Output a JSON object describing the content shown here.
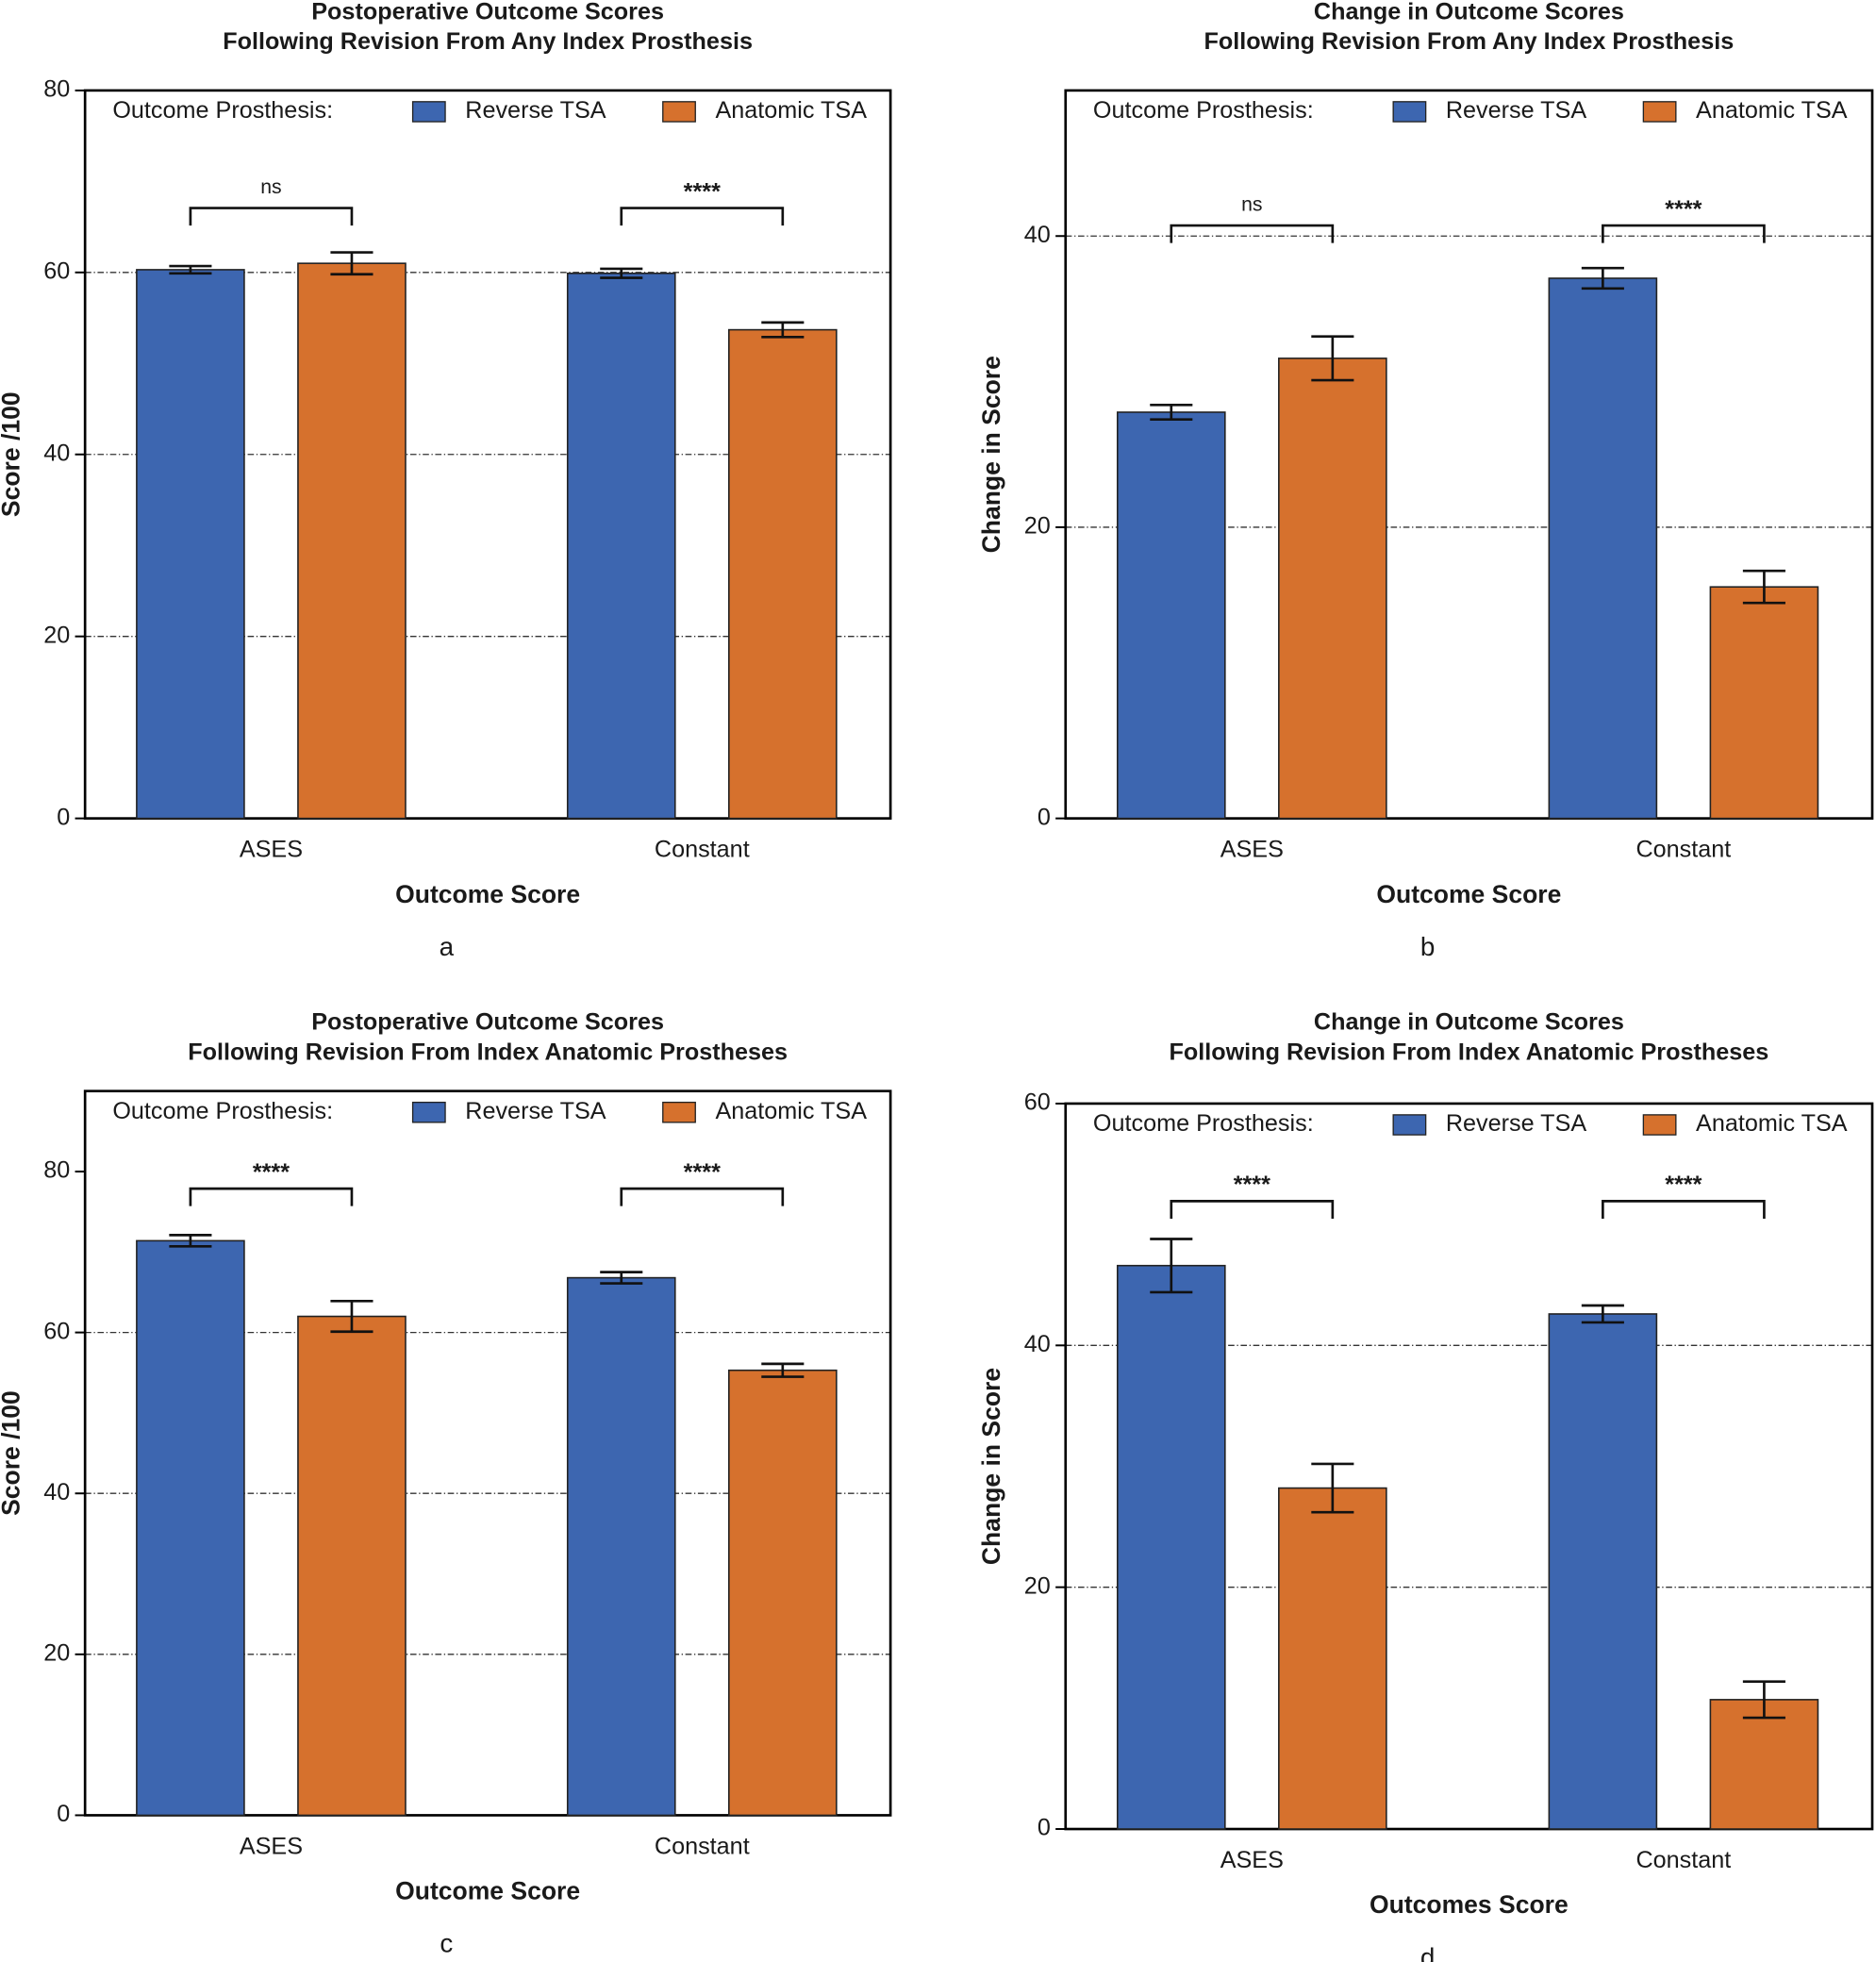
{
  "chart_data": [
    {
      "type": "bar",
      "title": [
        "Postoperative Outcome Scores",
        "Following Revision From Any Index Prosthesis"
      ],
      "ylabel": "Score /100",
      "xlabel": "Outcome Score",
      "panel": "a",
      "legend_title": "Outcome Prosthesis:",
      "categories": [
        "ASES",
        "Constant"
      ],
      "series": [
        {
          "name": "Reverse TSA",
          "color": "#3d66b0",
          "values": [
            60.3,
            59.9
          ],
          "errors": [
            0.4,
            0.5
          ]
        },
        {
          "name": "Anatomic TSA",
          "color": "#d6712d",
          "values": [
            61.0,
            53.7
          ],
          "errors": [
            1.2,
            0.8
          ]
        }
      ],
      "annotations": [
        "ns",
        "****"
      ],
      "ylim": [
        0,
        80
      ],
      "yticks": [
        0,
        20,
        40,
        60,
        80
      ],
      "ygrid": [
        20,
        40,
        60
      ]
    },
    {
      "type": "bar",
      "title": [
        "Change in Outcome Scores",
        "Following Revision From Any Index Prosthesis"
      ],
      "ylabel": "Change in Score",
      "xlabel": "Outcome Score",
      "panel": "b",
      "legend_title": "Outcome Prosthesis:",
      "categories": [
        "ASES",
        "Constant"
      ],
      "series": [
        {
          "name": "Reverse TSA",
          "color": "#3d66b0",
          "values": [
            27.9,
            37.1
          ],
          "errors": [
            0.5,
            0.7
          ]
        },
        {
          "name": "Anatomic TSA",
          "color": "#d6712d",
          "values": [
            31.6,
            15.9
          ],
          "errors": [
            1.5,
            1.1
          ]
        }
      ],
      "annotations": [
        "ns",
        "****"
      ],
      "ylim": [
        0,
        50
      ],
      "yticks": [
        0,
        20,
        40
      ],
      "ygrid": [
        20,
        40
      ]
    },
    {
      "type": "bar",
      "title": [
        "Postoperative Outcome Scores",
        "Following Revision From Index Anatomic Prostheses"
      ],
      "ylabel": "Score /100",
      "xlabel": "Outcome Score",
      "panel": "c",
      "legend_title": "Outcome Prosthesis:",
      "categories": [
        "ASES",
        "Constant"
      ],
      "series": [
        {
          "name": "Reverse TSA",
          "color": "#3d66b0",
          "values": [
            71.4,
            66.8
          ],
          "errors": [
            0.7,
            0.7
          ]
        },
        {
          "name": "Anatomic TSA",
          "color": "#d6712d",
          "values": [
            62.0,
            55.3
          ],
          "errors": [
            1.9,
            0.8
          ]
        }
      ],
      "annotations": [
        "****",
        "****"
      ],
      "ylim": [
        0,
        90
      ],
      "yticks": [
        0,
        20,
        40,
        60,
        80
      ],
      "ygrid": [
        20,
        40,
        60
      ]
    },
    {
      "type": "bar",
      "title": [
        "Change in Outcome Scores",
        "Following Revision From Index Anatomic Prostheses"
      ],
      "ylabel": "Change in Score",
      "xlabel": "Outcomes Score",
      "panel": "d",
      "legend_title": "Outcome Prosthesis:",
      "categories": [
        "ASES",
        "Constant"
      ],
      "series": [
        {
          "name": "Reverse TSA",
          "color": "#3d66b0",
          "values": [
            46.6,
            42.6
          ],
          "errors": [
            2.2,
            0.7
          ]
        },
        {
          "name": "Anatomic TSA",
          "color": "#d6712d",
          "values": [
            28.2,
            10.7
          ],
          "errors": [
            2.0,
            1.5
          ]
        }
      ],
      "annotations": [
        "****",
        "****"
      ],
      "ylim": [
        0,
        60
      ],
      "yticks": [
        0,
        20,
        40,
        60
      ],
      "ygrid": [
        20,
        40
      ]
    }
  ]
}
